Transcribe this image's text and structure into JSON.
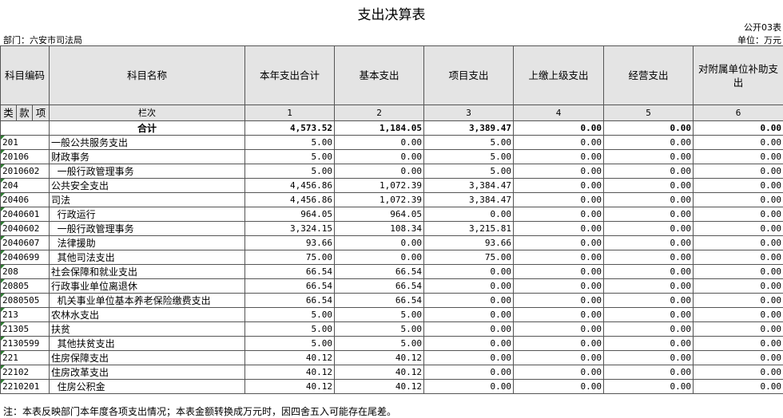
{
  "title": "支出决算表",
  "table_code": "公开03表",
  "department": "部门：六安市司法局",
  "unit": "单位：万元",
  "headers": {
    "subject_code": "科目编码",
    "subject_name": "科目名称",
    "cols": [
      "本年支出合计",
      "基本支出",
      "项目支出",
      "上缴上级支出",
      "经营支出",
      "对附属单位补助支出"
    ],
    "lei": "类",
    "kuan": "款",
    "xiang": "项",
    "lanci": "栏次",
    "colnums": [
      "1",
      "2",
      "3",
      "4",
      "5",
      "6"
    ],
    "total_label": "合计",
    "totals": [
      "4,573.52",
      "1,184.05",
      "3,389.47",
      "0.00",
      "0.00",
      "0.00"
    ]
  },
  "rows": [
    {
      "code": "201",
      "name": "一般公共服务支出",
      "values": [
        "5.00",
        "0.00",
        "5.00",
        "0.00",
        "0.00",
        "0.00"
      ]
    },
    {
      "code": "20106",
      "name": "财政事务",
      "values": [
        "5.00",
        "0.00",
        "5.00",
        "0.00",
        "0.00",
        "0.00"
      ]
    },
    {
      "code": "2010602",
      "name": "  一般行政管理事务",
      "values": [
        "5.00",
        "0.00",
        "5.00",
        "0.00",
        "0.00",
        "0.00"
      ]
    },
    {
      "code": "204",
      "name": "公共安全支出",
      "values": [
        "4,456.86",
        "1,072.39",
        "3,384.47",
        "0.00",
        "0.00",
        "0.00"
      ]
    },
    {
      "code": "20406",
      "name": "司法",
      "values": [
        "4,456.86",
        "1,072.39",
        "3,384.47",
        "0.00",
        "0.00",
        "0.00"
      ]
    },
    {
      "code": "2040601",
      "name": "  行政运行",
      "values": [
        "964.05",
        "964.05",
        "0.00",
        "0.00",
        "0.00",
        "0.00"
      ]
    },
    {
      "code": "2040602",
      "name": "  一般行政管理事务",
      "values": [
        "3,324.15",
        "108.34",
        "3,215.81",
        "0.00",
        "0.00",
        "0.00"
      ]
    },
    {
      "code": "2040607",
      "name": "  法律援助",
      "values": [
        "93.66",
        "0.00",
        "93.66",
        "0.00",
        "0.00",
        "0.00"
      ]
    },
    {
      "code": "2040699",
      "name": "  其他司法支出",
      "values": [
        "75.00",
        "0.00",
        "75.00",
        "0.00",
        "0.00",
        "0.00"
      ]
    },
    {
      "code": "208",
      "name": "社会保障和就业支出",
      "values": [
        "66.54",
        "66.54",
        "0.00",
        "0.00",
        "0.00",
        "0.00"
      ]
    },
    {
      "code": "20805",
      "name": "行政事业单位离退休",
      "values": [
        "66.54",
        "66.54",
        "0.00",
        "0.00",
        "0.00",
        "0.00"
      ]
    },
    {
      "code": "2080505",
      "name": "  机关事业单位基本养老保险缴费支出",
      "values": [
        "66.54",
        "66.54",
        "0.00",
        "0.00",
        "0.00",
        "0.00"
      ]
    },
    {
      "code": "213",
      "name": "农林水支出",
      "values": [
        "5.00",
        "5.00",
        "0.00",
        "0.00",
        "0.00",
        "0.00"
      ]
    },
    {
      "code": "21305",
      "name": "扶贫",
      "values": [
        "5.00",
        "5.00",
        "0.00",
        "0.00",
        "0.00",
        "0.00"
      ]
    },
    {
      "code": "2130599",
      "name": "  其他扶贫支出",
      "values": [
        "5.00",
        "5.00",
        "0.00",
        "0.00",
        "0.00",
        "0.00"
      ]
    },
    {
      "code": "221",
      "name": "住房保障支出",
      "values": [
        "40.12",
        "40.12",
        "0.00",
        "0.00",
        "0.00",
        "0.00"
      ]
    },
    {
      "code": "22102",
      "name": "住房改革支出",
      "values": [
        "40.12",
        "40.12",
        "0.00",
        "0.00",
        "0.00",
        "0.00"
      ]
    },
    {
      "code": "2210201",
      "name": "  住房公积金",
      "values": [
        "40.12",
        "40.12",
        "0.00",
        "0.00",
        "0.00",
        "0.00"
      ]
    }
  ],
  "note": "注：本表反映部门本年度各项支出情况；本表金额转换成万元时，因四舍五入可能存在尾差。"
}
